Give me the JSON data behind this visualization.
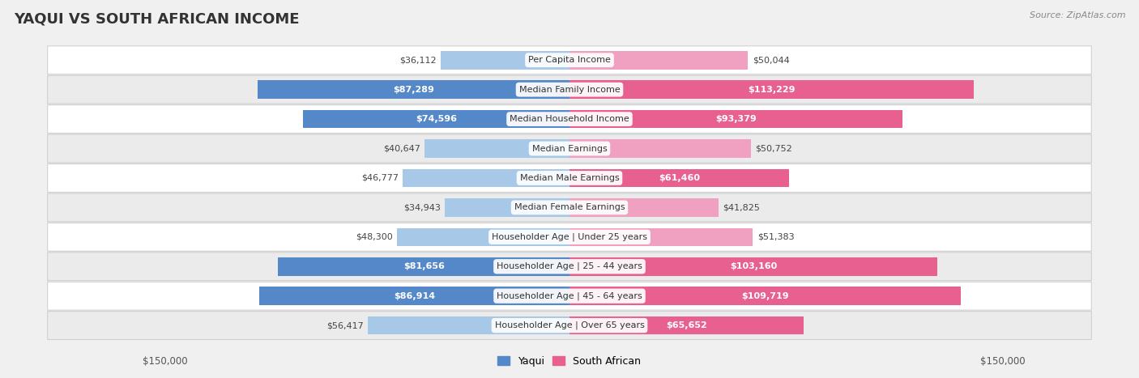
{
  "title": "YAQUI VS SOUTH AFRICAN INCOME",
  "source": "Source: ZipAtlas.com",
  "categories": [
    "Per Capita Income",
    "Median Family Income",
    "Median Household Income",
    "Median Earnings",
    "Median Male Earnings",
    "Median Female Earnings",
    "Householder Age | Under 25 years",
    "Householder Age | 25 - 44 years",
    "Householder Age | 45 - 64 years",
    "Householder Age | Over 65 years"
  ],
  "yaqui_values": [
    36112,
    87289,
    74596,
    40647,
    46777,
    34943,
    48300,
    81656,
    86914,
    56417
  ],
  "south_african_values": [
    50044,
    113229,
    93379,
    50752,
    61460,
    41825,
    51383,
    103160,
    109719,
    65652
  ],
  "yaqui_labels": [
    "$36,112",
    "$87,289",
    "$74,596",
    "$40,647",
    "$46,777",
    "$34,943",
    "$48,300",
    "$81,656",
    "$86,914",
    "$56,417"
  ],
  "south_african_labels": [
    "$50,044",
    "$113,229",
    "$93,379",
    "$50,752",
    "$61,460",
    "$41,825",
    "$51,383",
    "$103,160",
    "$109,719",
    "$65,652"
  ],
  "yaqui_color_light": "#a8c8e8",
  "yaqui_color_dark": "#5588c8",
  "south_african_color_light": "#f0a0c0",
  "south_african_color_dark": "#e86090",
  "max_value": 150000,
  "background_color": "#f0f0f0",
  "row_bg_even": "#ffffff",
  "row_bg_odd": "#ebebeb",
  "legend_yaqui": "Yaqui",
  "legend_south_african": "South African",
  "xlabel_left": "$150,000",
  "xlabel_right": "$150,000",
  "large_threshold": 60000,
  "title_fontsize": 13,
  "category_fontsize": 8,
  "value_fontsize": 8
}
